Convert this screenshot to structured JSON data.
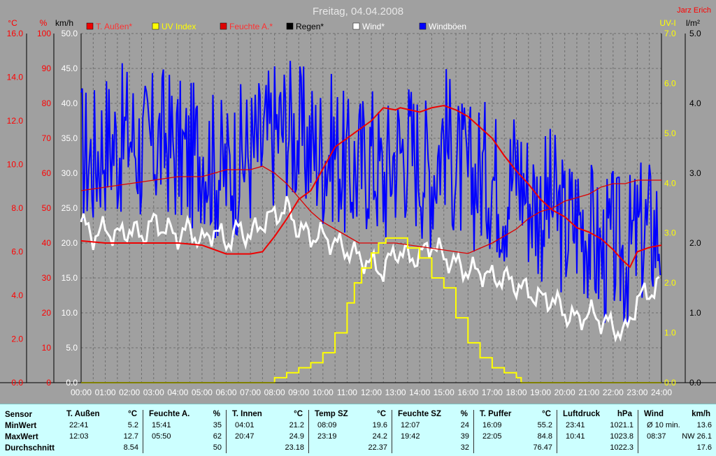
{
  "header": {
    "title": "Freitag, 04.04.2008",
    "author": "Jarz Erich"
  },
  "colors": {
    "plot_bg": "#a0a0a0",
    "grid": "#6e6e6e",
    "temperature": "#ee0000",
    "uv": "#ffff00",
    "humidity": "#dd0000",
    "rain": "#000000",
    "wind": "#ffffff",
    "gusts": "#0000ff",
    "left_axis_text": "#ff0000",
    "right_uv_text": "#ffff00",
    "summary_bg": "#ccffff"
  },
  "chart_data": {
    "type": "line",
    "title": "Freitag, 04.04.2008",
    "x": [
      "00:00",
      "01:00",
      "02:00",
      "03:00",
      "04:00",
      "05:00",
      "06:00",
      "07:00",
      "08:00",
      "09:00",
      "10:00",
      "11:00",
      "12:00",
      "13:00",
      "14:00",
      "15:00",
      "16:00",
      "17:00",
      "18:00",
      "19:00",
      "20:00",
      "21:00",
      "22:00",
      "23:00",
      "24:00"
    ],
    "xlim": [
      0,
      24
    ],
    "axes": {
      "temp": {
        "label": "°C",
        "ticks": [
          "0.0",
          "2.0",
          "4.0",
          "6.0",
          "8.0",
          "10.0",
          "12.0",
          "14.0",
          "16.0"
        ],
        "range": [
          0,
          16
        ]
      },
      "humidity": {
        "label": "%",
        "ticks": [
          "0",
          "10",
          "20",
          "30",
          "40",
          "50",
          "60",
          "70",
          "80",
          "90",
          "100"
        ],
        "range": [
          0,
          100
        ]
      },
      "wind": {
        "label": "km/h",
        "ticks": [
          "0.0",
          "5.0",
          "10.0",
          "15.0",
          "20.0",
          "25.0",
          "30.0",
          "35.0",
          "40.0",
          "45.0",
          "50.0"
        ],
        "range": [
          0,
          50
        ]
      },
      "uv": {
        "label": "UV-I",
        "ticks": [
          "0.0",
          "1.0",
          "2.0",
          "3.0",
          "4.0",
          "5.0",
          "6.0",
          "7.0"
        ],
        "range": [
          0,
          7
        ]
      },
      "rain": {
        "label": "l/m²",
        "ticks": [
          "0.0",
          "1.0",
          "2.0",
          "3.0",
          "4.0",
          "5.0"
        ],
        "range": [
          0,
          5
        ]
      }
    },
    "legend": [
      "T. Außen*",
      "UV Index",
      "Feuchte A.*",
      "Regen*",
      "Wind*",
      "Windböen"
    ],
    "legend_placement": "top",
    "grid": true,
    "series": [
      {
        "name": "T. Außen*",
        "axis": "temp",
        "color": "#ee0000",
        "x": [
          0,
          1,
          2,
          3,
          4,
          5,
          6,
          7,
          7.5,
          8,
          8.5,
          9,
          9.5,
          10,
          10.5,
          11,
          11.5,
          12,
          12.5,
          13,
          13.2,
          14,
          14.5,
          15,
          15.5,
          16,
          16.5,
          17,
          17.5,
          18,
          18.5,
          19,
          19.5,
          20,
          20.5,
          21,
          21.5,
          22,
          22.4,
          22.7,
          23,
          23.5,
          24
        ],
        "y": [
          6.5,
          6.4,
          6.4,
          6.4,
          6.4,
          6.3,
          5.9,
          5.9,
          6.0,
          6.7,
          7.5,
          8.4,
          8.8,
          9.8,
          10.8,
          11.2,
          11.6,
          12.0,
          12.6,
          12.5,
          12.6,
          12.4,
          12.6,
          12.7,
          12.5,
          12.2,
          11.7,
          11.2,
          10.4,
          9.7,
          9.1,
          8.4,
          7.9,
          7.6,
          7.1,
          6.9,
          6.6,
          6.1,
          5.6,
          5.3,
          6.0,
          6.2,
          6.3
        ]
      },
      {
        "name": "Feuchte A.*",
        "axis": "humidity",
        "color": "#dd0000",
        "x": [
          0,
          1,
          2,
          3,
          4,
          5,
          6,
          7,
          7.5,
          8,
          8.5,
          9,
          9.5,
          10,
          10.5,
          11,
          11.5,
          12,
          12.5,
          13,
          14,
          15,
          16,
          17,
          17.5,
          18,
          18.5,
          19,
          19.5,
          20,
          20.5,
          21,
          21.5,
          22,
          22.5,
          23,
          23.5,
          24
        ],
        "y": [
          55,
          56,
          57,
          58,
          59,
          59,
          61,
          61,
          62,
          60,
          57,
          53,
          49,
          46,
          44,
          42,
          40,
          40,
          40,
          40,
          39,
          38,
          37,
          40,
          42,
          44,
          47,
          49,
          50,
          52,
          53,
          54,
          56,
          57,
          57,
          58,
          58,
          58
        ]
      },
      {
        "name": "UV Index",
        "axis": "uv",
        "color": "#ffff00",
        "x": [
          0,
          7.8,
          8,
          8.5,
          9,
          9.5,
          10,
          10.5,
          11,
          11.3,
          11.6,
          12,
          12.3,
          12.6,
          13,
          13.5,
          14,
          14.5,
          15,
          15.5,
          16,
          16.5,
          17,
          17.5,
          18,
          18.2,
          24
        ],
        "y": [
          0,
          0,
          0.1,
          0.2,
          0.3,
          0.4,
          0.6,
          1.0,
          1.6,
          2.0,
          2.3,
          2.6,
          2.8,
          2.9,
          2.9,
          2.7,
          2.5,
          2.1,
          1.9,
          1.3,
          0.8,
          0.5,
          0.3,
          0.2,
          0.1,
          0,
          0
        ]
      },
      {
        "name": "Regen*",
        "axis": "rain",
        "color": "#000000",
        "x": [
          0,
          24
        ],
        "y": [
          0,
          0
        ]
      },
      {
        "name": "Wind*",
        "axis": "wind",
        "color": "#ffffff",
        "x": [
          0,
          0.5,
          1,
          1.5,
          2,
          2.5,
          3,
          3.5,
          4,
          4.5,
          5,
          5.5,
          6,
          6.5,
          7,
          7.5,
          8,
          8.5,
          9,
          9.5,
          10,
          10.5,
          11,
          11.5,
          12,
          12.5,
          13,
          13.5,
          14,
          14.5,
          15,
          15.5,
          16,
          16.5,
          17,
          17.5,
          18,
          18.5,
          19,
          19.5,
          20,
          20.5,
          21,
          21.5,
          22,
          22.5,
          23,
          23.5,
          24
        ],
        "y": [
          23,
          21,
          22,
          21,
          22,
          21,
          23,
          22,
          21,
          22,
          20,
          22,
          20,
          22,
          21,
          23,
          24,
          25,
          22,
          21,
          21,
          20,
          19,
          18,
          17,
          16,
          19,
          18,
          18,
          20,
          18,
          17,
          16,
          16,
          15,
          15,
          14,
          13,
          12,
          12,
          10,
          9,
          10,
          9,
          8,
          7,
          12,
          13,
          14
        ]
      },
      {
        "name": "Windböen",
        "axis": "wind",
        "color": "#0000ff",
        "x": [
          0,
          0.5,
          1,
          1.5,
          2,
          2.5,
          3,
          3.5,
          4,
          4.5,
          5,
          5.5,
          6,
          6.5,
          7,
          7.5,
          8,
          8.5,
          9,
          9.5,
          10,
          10.5,
          11,
          11.5,
          12,
          12.5,
          13,
          13.5,
          14,
          14.5,
          15,
          15.5,
          16,
          16.5,
          17,
          17.5,
          18,
          18.5,
          19,
          19.5,
          20,
          20.5,
          21,
          21.5,
          22,
          22.5,
          23,
          23.5,
          24
        ],
        "y": [
          33,
          32,
          35,
          34,
          36,
          33,
          34,
          35,
          33,
          32,
          34,
          31,
          30,
          32,
          33,
          34,
          36,
          37,
          35,
          34,
          33,
          34,
          30,
          31,
          33,
          29,
          33,
          34,
          32,
          30,
          36,
          31,
          29,
          30,
          30,
          27,
          31,
          27,
          25,
          26,
          22,
          24,
          22,
          18,
          20,
          18,
          21,
          22,
          22
        ]
      }
    ]
  },
  "summary": {
    "row_labels": [
      "Sensor",
      "MinWert",
      "MaxWert",
      "Durchschnitt"
    ],
    "blocks": [
      {
        "name": "T. Außen",
        "unit": "°C",
        "min_time": "22:41",
        "min_val": "5.2",
        "max_time": "12:03",
        "max_val": "12.7",
        "avg": "8.54"
      },
      {
        "name": "Feuchte A.",
        "unit": "%",
        "min_time": "15:41",
        "min_val": "35",
        "max_time": "05:50",
        "max_val": "62",
        "avg": "50"
      },
      {
        "name": "T. Innen",
        "unit": "°C",
        "min_time": "04:01",
        "min_val": "21.2",
        "max_time": "20:47",
        "max_val": "24.9",
        "avg": "23.18"
      },
      {
        "name": "Temp SZ",
        "unit": "°C",
        "min_time": "08:09",
        "min_val": "19.6",
        "max_time": "23:19",
        "max_val": "24.2",
        "avg": "22.37"
      },
      {
        "name": "Feuchte SZ",
        "unit": "%",
        "min_time": "12:07",
        "min_val": "24",
        "max_time": "19:42",
        "max_val": "39",
        "avg": "32"
      },
      {
        "name": "T. Puffer",
        "unit": "°C",
        "min_time": "16:09",
        "min_val": "55.2",
        "max_time": "22:05",
        "max_val": "84.8",
        "avg": "76.47"
      },
      {
        "name": "Luftdruck",
        "unit": "hPa",
        "min_time": "23:41",
        "min_val": "1021.1",
        "max_time": "10:41",
        "max_val": "1023.8",
        "avg": "1022.3"
      },
      {
        "name": "Wind",
        "unit": "km/h",
        "min_time": "Ø 10 min.",
        "min_val": "13.6",
        "max_time": "08:37",
        "max_val": "NW 26.1",
        "avg": "17.6"
      }
    ]
  }
}
